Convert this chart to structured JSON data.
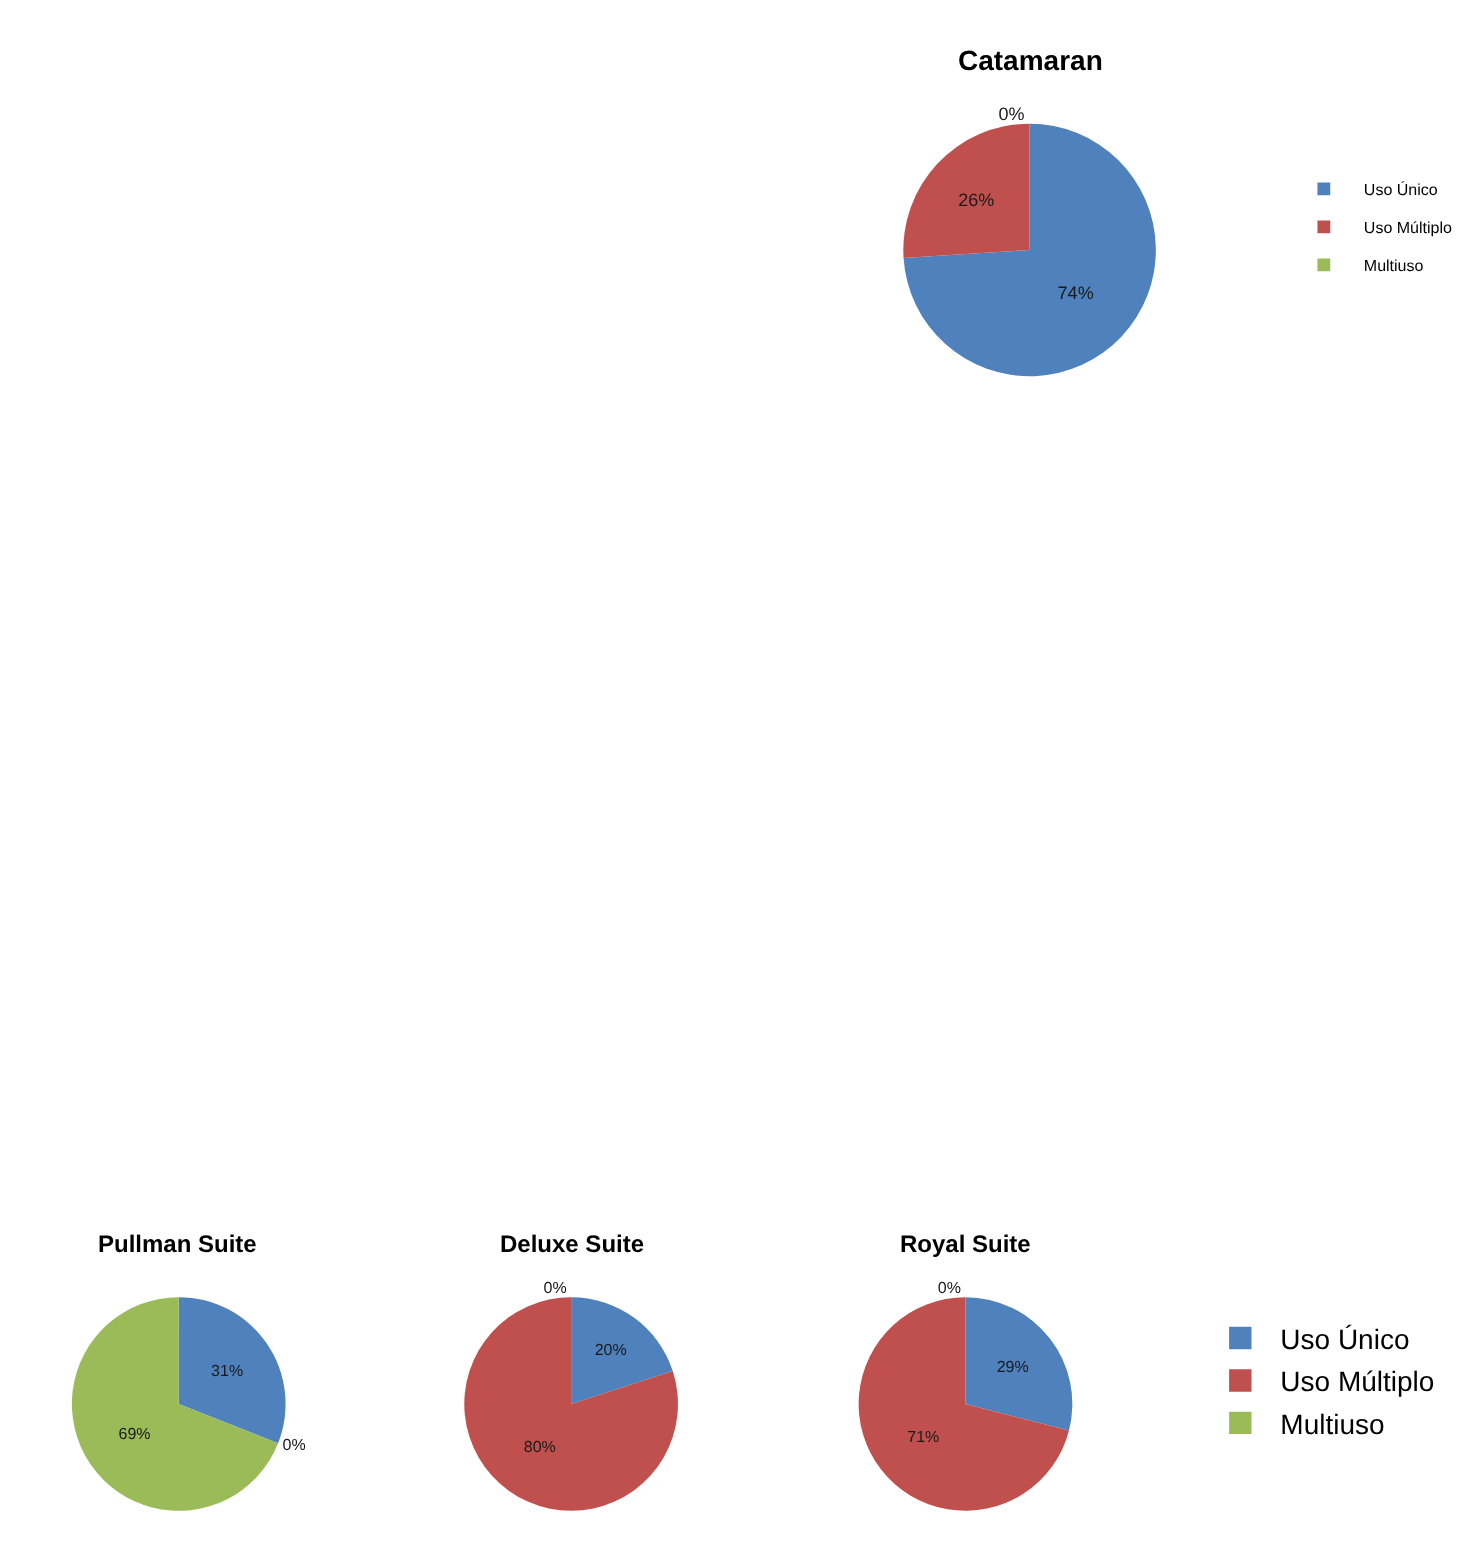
{
  "chart_data": [
    {
      "type": "pie",
      "title": "Catamaran",
      "categories": [
        "Uso Único",
        "Uso Múltiplo",
        "Multiuso"
      ],
      "values": [
        74,
        26,
        0
      ],
      "colors": [
        "#4f81bd",
        "#c0504d",
        "#9bbb59"
      ],
      "value_labels": [
        "74%",
        "26%",
        "0%"
      ],
      "legend": "right"
    },
    {
      "type": "pie",
      "title": "Pullman Suite",
      "categories": [
        null,
        null,
        null
      ],
      "values": [
        31,
        0,
        69
      ],
      "colors": [
        "#4f81bd",
        "#c0504d",
        "#9bbb59"
      ],
      "value_labels": [
        "31%",
        "0%",
        "69%"
      ]
    },
    {
      "type": "pie",
      "title": "Deluxe Suite",
      "categories": [
        null,
        null,
        null
      ],
      "values": [
        20,
        80,
        0
      ],
      "colors": [
        "#4f81bd",
        "#c0504d",
        "#9bbb59"
      ],
      "value_labels": [
        "20%",
        "80%",
        "0%"
      ]
    },
    {
      "type": "pie",
      "title": "Royal Suite",
      "categories": [
        "Uso Único",
        "Uso Múltiplo",
        "Multiuso"
      ],
      "values": [
        29,
        71,
        0
      ],
      "colors": [
        "#4f81bd",
        "#c0504d",
        "#9bbb59"
      ],
      "value_labels": [
        "29%",
        "71%",
        "0%"
      ],
      "legend": "right"
    }
  ]
}
